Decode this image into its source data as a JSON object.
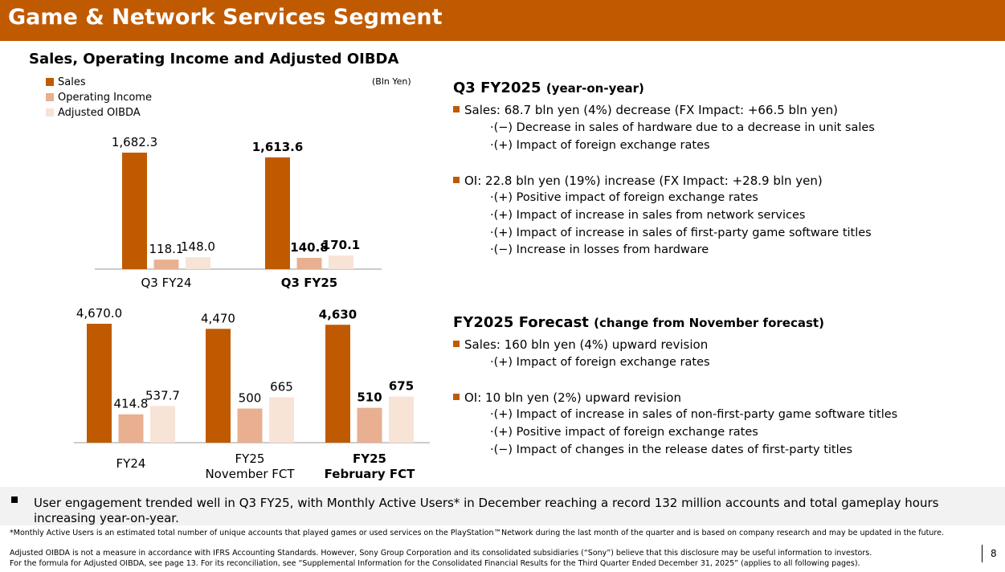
{
  "header": {
    "title": "Game & Network Services Segment"
  },
  "subtitle": "Sales, Operating Income and Adjusted OIBDA",
  "unit": "(Bln Yen)",
  "colors": {
    "sales": "#C05A00",
    "operating_income": "#E8B090",
    "adjusted_oibda": "#F8E3D7",
    "header": "#C05A00"
  },
  "chart_data": [
    {
      "type": "bar",
      "series": [
        {
          "name": "Sales",
          "values": [
            1682.3,
            1613.6
          ]
        },
        {
          "name": "Operating Income",
          "values": [
            118.1,
            140.8
          ]
        },
        {
          "name": "Adjusted OIBDA",
          "values": [
            148.0,
            170.1
          ]
        }
      ],
      "categories": [
        "Q3 FY24",
        "Q3 FY25"
      ],
      "labels": [
        [
          "1,682.3",
          "118.1",
          "148.0"
        ],
        [
          "1,613.6",
          "140.8",
          "170.1"
        ]
      ],
      "bold_category": [
        false,
        true
      ],
      "legend": "top-left",
      "grid": false
    },
    {
      "type": "bar",
      "series": [
        {
          "name": "Sales",
          "values": [
            4670.0,
            4470,
            4630
          ]
        },
        {
          "name": "Operating Income",
          "values": [
            414.8,
            500,
            510
          ]
        },
        {
          "name": "Adjusted OIBDA",
          "values": [
            537.7,
            665,
            675
          ]
        }
      ],
      "categories": [
        "FY24",
        "FY25\nNovember FCT",
        "FY25\nFebruary FCT"
      ],
      "labels": [
        [
          "4,670.0",
          "414.8",
          "537.7"
        ],
        [
          "4,470",
          "500",
          "665"
        ],
        [
          "4,630",
          "510",
          "675"
        ]
      ],
      "bold_category": [
        false,
        false,
        true
      ],
      "grid": false
    }
  ],
  "q3": {
    "heading": "Q3 FY2025",
    "heading_note": "(year-on-year)",
    "sales": "Sales: 68.7 bln yen (4%) decrease (FX Impact: +66.5 bln yen)",
    "sales_items": [
      "·(−) Decrease in sales of hardware due to a decrease in unit sales",
      "·(+) Impact of foreign exchange rates"
    ],
    "oi": "OI: 22.8 bln yen (19%) increase (FX Impact: +28.9 bln yen)",
    "oi_items": [
      "·(+) Positive impact of foreign exchange rates",
      "·(+) Impact of increase in sales from network services",
      "·(+) Impact of increase in sales of first-party game software titles",
      "·(−) Increase in losses from hardware"
    ]
  },
  "fc": {
    "heading": "FY2025 Forecast",
    "heading_note": "(change from November forecast)",
    "sales": "Sales: 160 bln yen (4%) upward revision",
    "sales_items": [
      "·(+) Impact of foreign exchange rates"
    ],
    "oi": "OI: 10 bln yen (2%) upward revision",
    "oi_items": [
      "·(+) Impact of increase in sales of non-first-party game software titles",
      "·(+) Positive impact of foreign exchange rates",
      "·(−) Impact of changes in the release dates of first-party titles"
    ]
  },
  "note": "User engagement trended well in Q3 FY25, with Monthly Active Users* in December reaching a record 132 million accounts and total gameplay hours increasing year-on-year.",
  "footnote": "*Monthly Active Users is an estimated total number of unique accounts that played games or used services on the PlayStation™Network during the last month of the quarter and is based on company research and may be updated in the future.",
  "disclaimer1": "Adjusted OIBDA is not a measure in accordance with IFRS Accounting Standards. However, Sony Group Corporation and its consolidated subsidiaries (“Sony”) believe that this disclosure may be useful information to investors.",
  "disclaimer2": "For the formula for Adjusted OIBDA, see page 13. For its reconciliation, see “Supplemental Information for the Consolidated Financial Results for the Third Quarter Ended December 31, 2025” (applies to all following pages).",
  "page": "8"
}
